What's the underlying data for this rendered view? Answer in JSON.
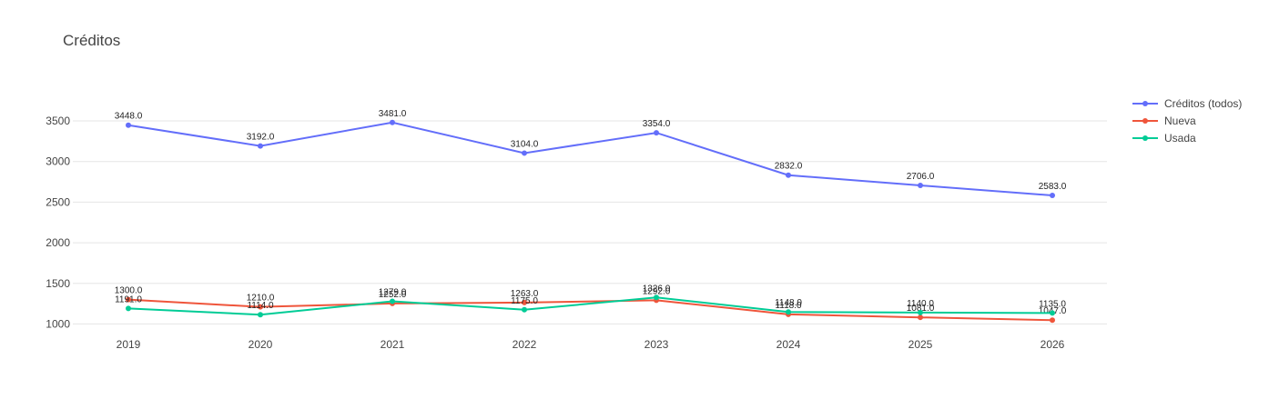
{
  "chart_data": {
    "type": "line",
    "title": "Créditos",
    "xlabel": "",
    "ylabel": "",
    "x": [
      "2019",
      "2020",
      "2021",
      "2022",
      "2023",
      "2024",
      "2025",
      "2026"
    ],
    "ylim": [
      960,
      3870
    ],
    "yticks": [
      "1000",
      "1500",
      "2000",
      "2500",
      "3000",
      "3500"
    ],
    "grid": true,
    "legend_position": "top-right",
    "series": [
      {
        "name": "Créditos (todos)",
        "color": "#636efa",
        "values": [
          3448,
          3192,
          3481,
          3104,
          3354,
          2832,
          2706,
          2583
        ],
        "labels": [
          "3448.0",
          "3192.0",
          "3481.0",
          "3104.0",
          "3354.0",
          "2832.0",
          "2706.0",
          "2583.0"
        ]
      },
      {
        "name": "Nueva",
        "color": "#ef553b",
        "values": [
          1300,
          1210,
          1252,
          1263,
          1292,
          1118,
          1081,
          1047
        ],
        "labels": [
          "1300.0",
          "1210.0",
          "1252.0",
          "1263.0",
          "1292.0",
          "1118.0",
          "1081.0",
          "1047.0"
        ]
      },
      {
        "name": "Usada",
        "color": "#00cc96",
        "values": [
          1191,
          1114,
          1279,
          1175,
          1326,
          1148,
          1140,
          1135
        ],
        "labels": [
          "1191.0",
          "1114.0",
          "1279.0",
          "1175.0",
          "1326.0",
          "1148.0",
          "1140.0",
          "1135.0"
        ]
      }
    ]
  }
}
